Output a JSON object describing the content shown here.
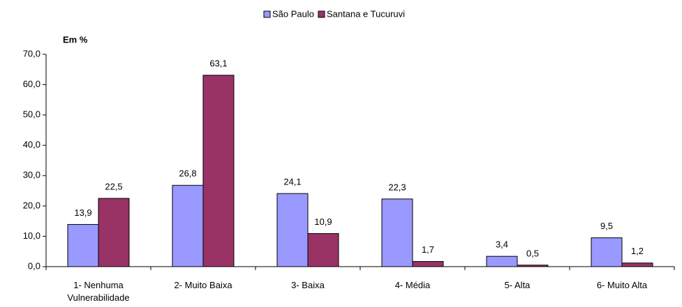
{
  "chart_data": {
    "type": "bar",
    "y_label": "Em %",
    "categories": [
      "1- Nenhuma Vulnerabilidade",
      "2- Muito Baixa",
      "3- Baixa",
      "4- Média",
      "5- Alta",
      "6- Muito Alta"
    ],
    "series": [
      {
        "name": "São Paulo",
        "color": "#9999ff",
        "values": [
          13.9,
          26.8,
          24.1,
          22.3,
          3.4,
          9.5
        ],
        "value_labels": [
          "13,9",
          "26,8",
          "24,1",
          "22,3",
          "3,4",
          "9,5"
        ]
      },
      {
        "name": "Santana e Tucuruvi",
        "color": "#993366",
        "values": [
          22.5,
          63.1,
          10.9,
          1.7,
          0.5,
          1.2
        ],
        "value_labels": [
          "22,5",
          "63,1",
          "10,9",
          "1,7",
          "0,5",
          "1,2"
        ]
      }
    ],
    "ylim": [
      0,
      70
    ],
    "yticks": [
      {
        "value": 0,
        "label": "0,0"
      },
      {
        "value": 10,
        "label": "10,0"
      },
      {
        "value": 20,
        "label": "20,0"
      },
      {
        "value": 30,
        "label": "30,0"
      },
      {
        "value": 40,
        "label": "40,0"
      },
      {
        "value": 50,
        "label": "50,0"
      },
      {
        "value": 60,
        "label": "60,0"
      },
      {
        "value": 70,
        "label": "70,0"
      }
    ],
    "legend": "top"
  }
}
